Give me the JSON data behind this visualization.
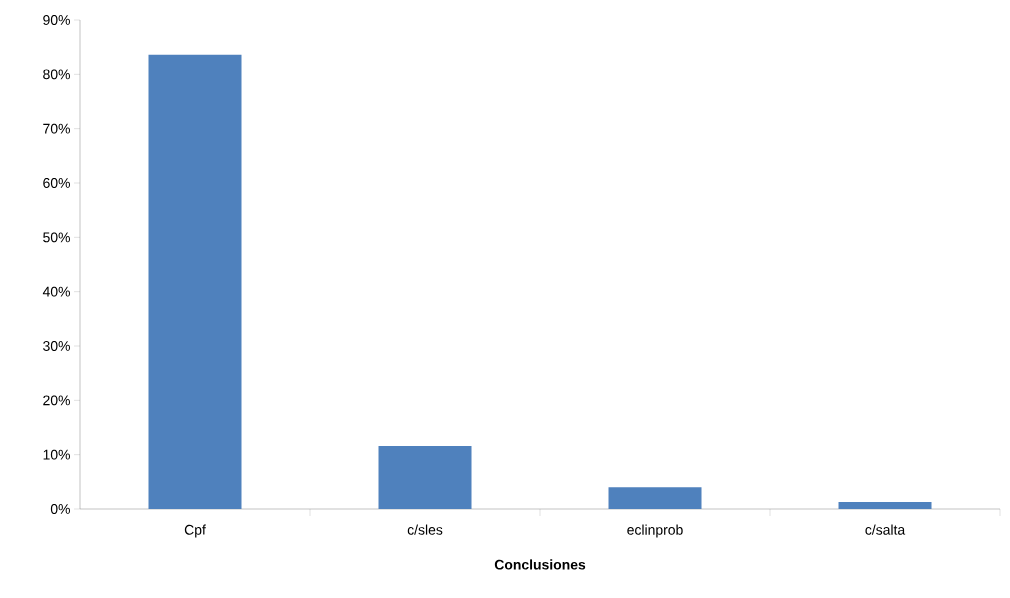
{
  "chart_data": {
    "type": "bar",
    "xlabel": "Conclusiones",
    "categories": [
      "Cpf",
      "c/sles",
      "eclinprob",
      "c/salta"
    ],
    "values": [
      83.6,
      11.6,
      4.0,
      1.3
    ],
    "color": "#4f81bd",
    "ylim": [
      0,
      90
    ],
    "yticks": [
      {
        "value": 0,
        "label": "0%"
      },
      {
        "value": 10,
        "label": "10%"
      },
      {
        "value": 20,
        "label": "20%"
      },
      {
        "value": 30,
        "label": "30%"
      },
      {
        "value": 40,
        "label": "40%"
      },
      {
        "value": 50,
        "label": "50%"
      },
      {
        "value": 60,
        "label": "60%"
      },
      {
        "value": 70,
        "label": "70%"
      },
      {
        "value": 80,
        "label": "80%"
      },
      {
        "value": 90,
        "label": "90%"
      }
    ]
  }
}
